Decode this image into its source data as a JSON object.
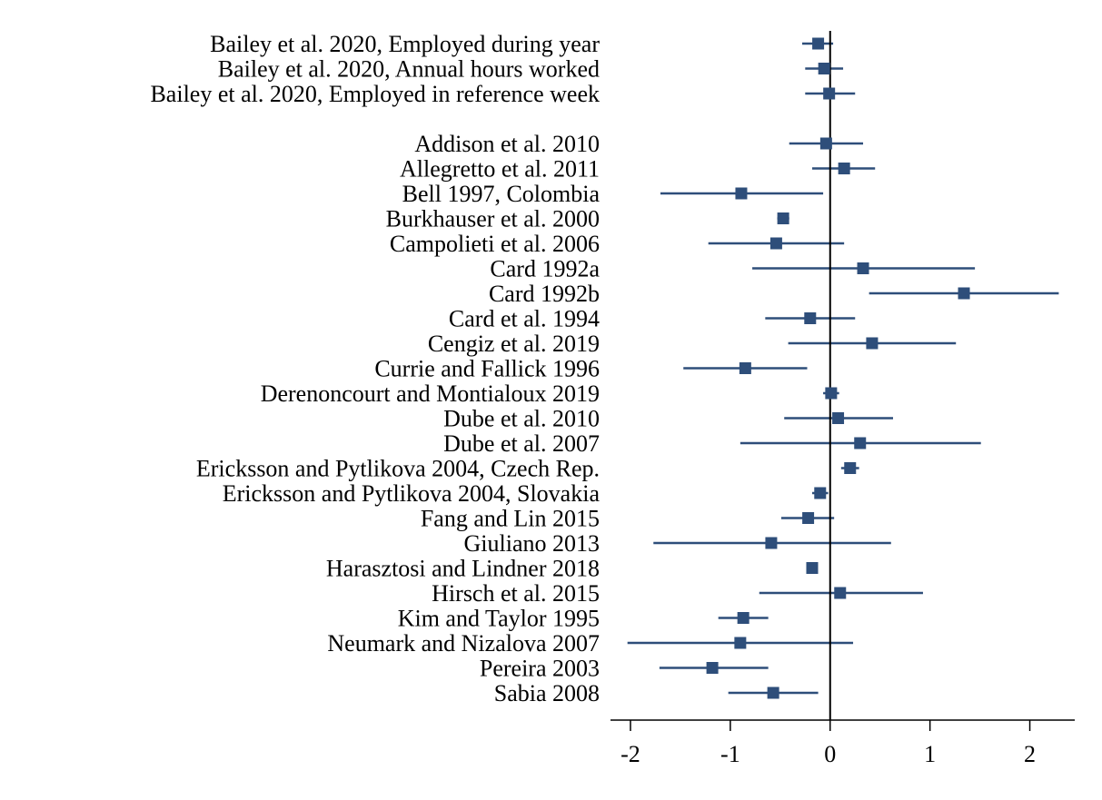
{
  "chart_data": {
    "type": "forest",
    "title": "",
    "xlabel": "",
    "ylabel": "",
    "xlim": [
      -2.2,
      2.45
    ],
    "xticks": [
      -2,
      -1,
      0,
      1,
      2
    ],
    "xtick_labels": [
      "-2",
      "-1",
      "0",
      "1",
      "2"
    ],
    "reference_line": 0,
    "grid": false,
    "colors": {
      "marker": "#2e4e7a",
      "axis": "#000000"
    },
    "groups": [
      {
        "studies": [
          {
            "label": "Bailey et al. 2020, Employed during year",
            "estimate": -0.12,
            "ci_low": -0.28,
            "ci_high": 0.03
          },
          {
            "label": "Bailey et al. 2020, Annual hours worked",
            "estimate": -0.06,
            "ci_low": -0.25,
            "ci_high": 0.13
          },
          {
            "label": "Bailey et al. 2020, Employed in reference week",
            "estimate": -0.01,
            "ci_low": -0.25,
            "ci_high": 0.25
          }
        ]
      },
      {
        "studies": [
          {
            "label": "Addison et al. 2010",
            "estimate": -0.04,
            "ci_low": -0.41,
            "ci_high": 0.33
          },
          {
            "label": "Allegretto et al. 2011",
            "estimate": 0.14,
            "ci_low": -0.18,
            "ci_high": 0.45
          },
          {
            "label": "Bell 1997, Colombia",
            "estimate": -0.89,
            "ci_low": -1.7,
            "ci_high": -0.07
          },
          {
            "label": "Burkhauser et al. 2000",
            "estimate": -0.47,
            "ci_low": -0.53,
            "ci_high": -0.41
          },
          {
            "label": "Campolieti et al. 2006",
            "estimate": -0.54,
            "ci_low": -1.22,
            "ci_high": 0.14
          },
          {
            "label": "Card 1992a",
            "estimate": 0.33,
            "ci_low": -0.78,
            "ci_high": 1.45
          },
          {
            "label": "Card 1992b",
            "estimate": 1.34,
            "ci_low": 0.39,
            "ci_high": 2.29
          },
          {
            "label": "Card et al. 1994",
            "estimate": -0.2,
            "ci_low": -0.65,
            "ci_high": 0.25
          },
          {
            "label": "Cengiz et al. 2019",
            "estimate": 0.42,
            "ci_low": -0.42,
            "ci_high": 1.26
          },
          {
            "label": "Currie and Fallick 1996",
            "estimate": -0.85,
            "ci_low": -1.47,
            "ci_high": -0.23
          },
          {
            "label": "Derenoncourt and Montialoux 2019",
            "estimate": 0.01,
            "ci_low": -0.07,
            "ci_high": 0.09
          },
          {
            "label": "Dube et al. 2010",
            "estimate": 0.08,
            "ci_low": -0.46,
            "ci_high": 0.63
          },
          {
            "label": "Dube et al. 2007",
            "estimate": 0.3,
            "ci_low": -0.9,
            "ci_high": 1.51
          },
          {
            "label": "Ericksson and Pytlikova 2004, Czech Rep.",
            "estimate": 0.2,
            "ci_low": 0.11,
            "ci_high": 0.29
          },
          {
            "label": "Ericksson and Pytlikova 2004, Slovakia",
            "estimate": -0.1,
            "ci_low": -0.18,
            "ci_high": -0.02
          },
          {
            "label": "Fang and Lin 2015",
            "estimate": -0.22,
            "ci_low": -0.49,
            "ci_high": 0.04
          },
          {
            "label": "Giuliano 2013",
            "estimate": -0.59,
            "ci_low": -1.77,
            "ci_high": 0.61
          },
          {
            "label": "Harasztosi and Lindner 2018",
            "estimate": -0.18,
            "ci_low": -0.21,
            "ci_high": -0.15
          },
          {
            "label": "Hirsch et al. 2015",
            "estimate": 0.1,
            "ci_low": -0.71,
            "ci_high": 0.93
          },
          {
            "label": "Kim and Taylor 1995",
            "estimate": -0.87,
            "ci_low": -1.12,
            "ci_high": -0.62
          },
          {
            "label": "Neumark and Nizalova 2007",
            "estimate": -0.9,
            "ci_low": -2.03,
            "ci_high": 0.23
          },
          {
            "label": "Pereira 2003",
            "estimate": -1.18,
            "ci_low": -1.71,
            "ci_high": -0.62
          },
          {
            "label": "Sabia 2008",
            "estimate": -0.57,
            "ci_low": -1.02,
            "ci_high": -0.12
          }
        ]
      }
    ]
  }
}
